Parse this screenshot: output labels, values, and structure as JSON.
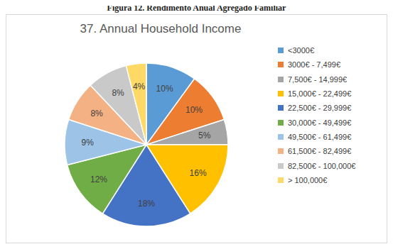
{
  "chart_data": {
    "type": "pie",
    "title": "37. Annual Household Income",
    "annotations": [
      "Figura 12. Rendimento Anual Agregado Familiar"
    ],
    "categories": [
      "<3000€",
      "3000€ - 7,499€",
      "7,500€ - 14,999€",
      "15,000€ - 22,499€",
      "22,500€ - 29,999€",
      "30,000€ - 49,499€",
      "49,500€ - 61,499€",
      "61,500€ - 82,499€",
      "82,500€ - 100,000€",
      "> 100,000€"
    ],
    "values": [
      10,
      10,
      5,
      16,
      18,
      12,
      9,
      8,
      8,
      4
    ],
    "value_labels": [
      "10%",
      "10%",
      "5%",
      "16%",
      "18%",
      "12%",
      "9%",
      "8%",
      "8%",
      "4%"
    ],
    "colors": [
      "#5B9BD5",
      "#ED7D31",
      "#A5A5A5",
      "#FFC000",
      "#4472C4",
      "#70AD47",
      "#9DC3E6",
      "#F4B183",
      "#C9C9C9",
      "#FFD966"
    ],
    "data_labels": true,
    "legend": "right"
  }
}
